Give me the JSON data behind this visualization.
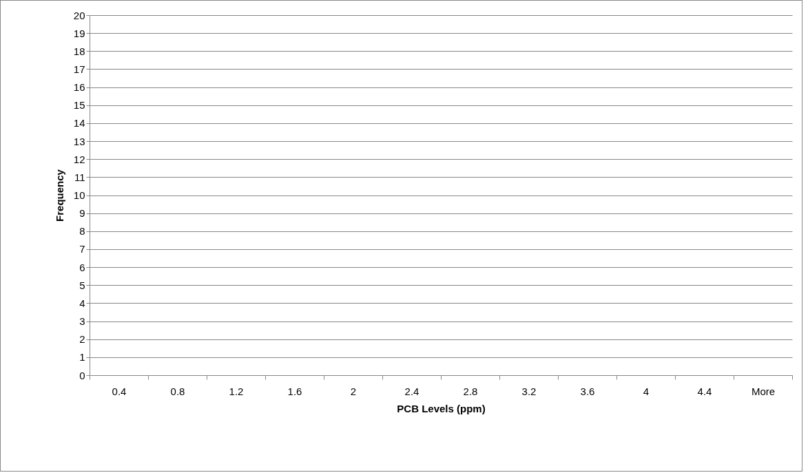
{
  "chart_data": {
    "type": "bar",
    "xlabel": "PCB Levels (ppm)",
    "ylabel": "Frequency",
    "categories": [
      "0.4",
      "0.8",
      "1.2",
      "1.6",
      "2",
      "2.4",
      "2.8",
      "3.2",
      "3.6",
      "4",
      "4.4",
      "More"
    ],
    "values": [
      0,
      0,
      0,
      0,
      0,
      0,
      0,
      0,
      0,
      0,
      0,
      0
    ],
    "ylim": [
      0,
      20
    ],
    "yticks": [
      0,
      1,
      2,
      3,
      4,
      5,
      6,
      7,
      8,
      9,
      10,
      11,
      12,
      13,
      14,
      15,
      16,
      17,
      18,
      19,
      20
    ],
    "grid": "y"
  }
}
